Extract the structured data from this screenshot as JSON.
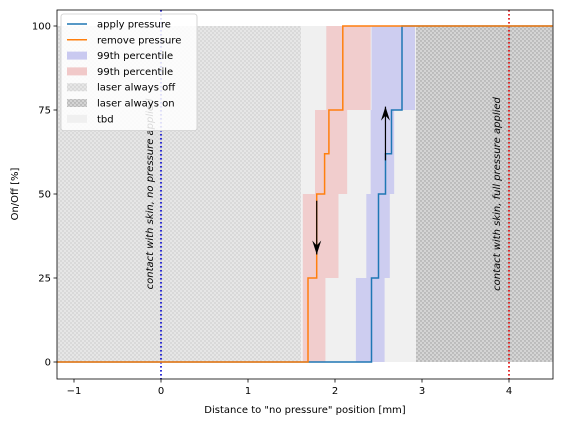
{
  "chart_data": {
    "type": "line",
    "xlabel": "Distance to \"no pressure\" position [mm]",
    "ylabel": "On/Off [%]",
    "xlim": [
      -1.2,
      4.5
    ],
    "ylim": [
      -5,
      105
    ],
    "xticks": [
      -1,
      0,
      1,
      2,
      3,
      4
    ],
    "yticks": [
      0,
      25,
      50,
      75,
      100
    ],
    "grid": false,
    "legend": "top-left",
    "colors": {
      "apply": "#1f77b4",
      "remove": "#ff7f0e",
      "blue_band": "#c9c9f0",
      "red_band": "#f1c9c9",
      "off_region": "#e6e6e6",
      "on_region": "#d2d2d2",
      "tbd": "#f0f0f0",
      "vline_blue": "#0000cc",
      "vline_red": "#dd0000"
    },
    "series": [
      {
        "name": "apply pressure",
        "color": "#1f77b4",
        "x": [
          -1.2,
          2.42,
          2.42,
          2.5,
          2.5,
          2.58,
          2.58,
          2.65,
          2.65,
          2.77,
          2.77,
          4.5
        ],
        "y": [
          0,
          0,
          25,
          25,
          50,
          50,
          62,
          62,
          75,
          75,
          100,
          100
        ]
      },
      {
        "name": "remove pressure",
        "color": "#ff7f0e",
        "x": [
          -1.2,
          1.69,
          1.69,
          1.79,
          1.79,
          1.88,
          1.88,
          1.93,
          1.93,
          2.09,
          2.09,
          4.5
        ],
        "y": [
          0,
          0,
          25,
          25,
          50,
          50,
          62,
          62,
          75,
          75,
          100,
          100
        ]
      }
    ],
    "bands": [
      {
        "series": "99th percentile",
        "color": "blue",
        "y": [
          0,
          25
        ],
        "x": [
          2.24,
          2.57
        ]
      },
      {
        "series": "99th percentile",
        "color": "blue",
        "y": [
          25,
          50
        ],
        "x": [
          2.36,
          2.63
        ]
      },
      {
        "series": "99th percentile",
        "color": "blue",
        "y": [
          50,
          75
        ],
        "x": [
          2.41,
          2.68
        ]
      },
      {
        "series": "99th percentile",
        "color": "blue",
        "y": [
          75,
          100
        ],
        "x": [
          2.42,
          2.92
        ]
      },
      {
        "series": "99th percentile",
        "color": "red",
        "y": [
          0,
          25
        ],
        "x": [
          1.63,
          1.89
        ]
      },
      {
        "series": "99th percentile",
        "color": "red",
        "y": [
          25,
          50
        ],
        "x": [
          1.63,
          2.04
        ]
      },
      {
        "series": "99th percentile",
        "color": "red",
        "y": [
          50,
          75
        ],
        "x": [
          1.77,
          2.14
        ]
      },
      {
        "series": "99th percentile",
        "color": "red",
        "y": [
          75,
          100
        ],
        "x": [
          1.9,
          2.41
        ]
      }
    ],
    "regions": [
      {
        "series": "laser always off",
        "x": [
          -1.2,
          1.61
        ],
        "y": [
          0,
          100
        ]
      },
      {
        "series": "laser always on",
        "x": [
          2.93,
          4.5
        ],
        "y": [
          0,
          100
        ]
      },
      {
        "series": "tbd",
        "x": [
          1.61,
          2.93
        ],
        "y": [
          0,
          100
        ]
      }
    ],
    "vlines": [
      {
        "x": 0,
        "color": "blue",
        "style": "dotted"
      },
      {
        "x": 4,
        "color": "red",
        "style": "dotted"
      }
    ],
    "arrows": [
      {
        "x": 1.79,
        "from": 48,
        "to": 32,
        "direction": "down"
      },
      {
        "x": 2.58,
        "from": 60,
        "to": 76,
        "direction": "up"
      }
    ],
    "annotations": [
      {
        "text": "contact with skin, no pressure applied",
        "x": -0.12,
        "y": 50
      },
      {
        "text": "contact with skin, full pressure applied",
        "x": 3.87,
        "y": 50
      }
    ],
    "legend_entries": [
      {
        "label": "apply pressure",
        "kind": "line",
        "color": "#1f77b4"
      },
      {
        "label": "remove pressure",
        "kind": "line",
        "color": "#ff7f0e"
      },
      {
        "label": "99th percentile",
        "kind": "patch",
        "color": "#c9c9f0"
      },
      {
        "label": "99th percentile",
        "kind": "patch",
        "color": "#f1c9c9"
      },
      {
        "label": "laser always off",
        "kind": "patch",
        "color": "#e6e6e6"
      },
      {
        "label": "laser always on",
        "kind": "patch",
        "color": "#d2d2d2"
      },
      {
        "label": "tbd",
        "kind": "patch",
        "color": "#f0f0f0"
      }
    ]
  }
}
